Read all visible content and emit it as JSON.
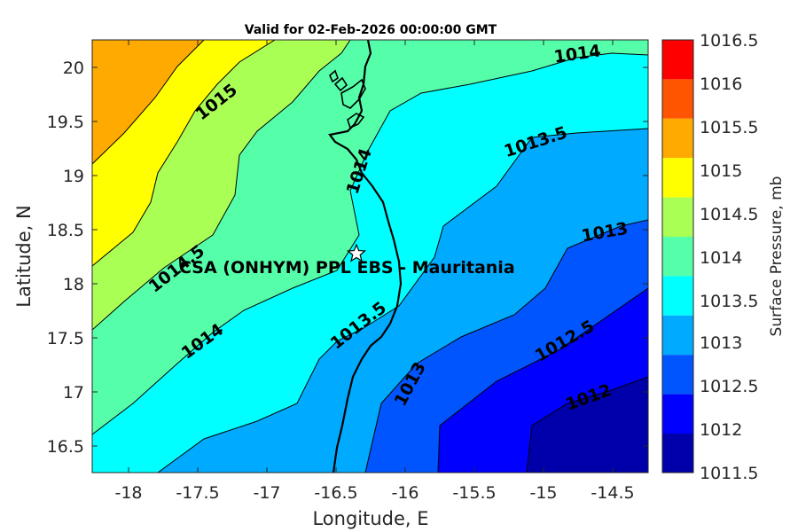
{
  "title": "Valid for 02-Feb-2026 00:00:00 GMT",
  "xlabel": "Longitude, E",
  "ylabel": "Latitude, N",
  "x_ticks": [
    "-18",
    "-17.5",
    "-17",
    "-16.5",
    "-16",
    "-15.5",
    "-15",
    "-14.5"
  ],
  "y_ticks": [
    "20",
    "19.5",
    "19",
    "18.5",
    "18",
    "17.5",
    "17",
    "16.5"
  ],
  "colorbar": {
    "label": "Surface Pressure, mb",
    "ticks": [
      "1016.5",
      "1016",
      "1015.5",
      "1015",
      "1014.5",
      "1014",
      "1013.5",
      "1013",
      "1012.5",
      "1012",
      "1011.5"
    ],
    "colors": [
      "#ff0000",
      "#ff5500",
      "#ffaa00",
      "#ffff00",
      "#aaff55",
      "#55ffaa",
      "#00ffff",
      "#00aaff",
      "#0055ff",
      "#0000ff",
      "#0000aa"
    ]
  },
  "contour_labels": [
    "1015",
    "1014",
    "1014",
    "1014",
    "1013.5",
    "1013.5",
    "1013",
    "1013",
    "1012.5",
    "1012",
    "1014.5"
  ],
  "site": {
    "label": "CSA (ONHYM) PPL EBS  - Mauritania",
    "marker": "star-marker",
    "lon": -16.35,
    "lat": 18.27
  },
  "chart_data": {
    "type": "contour-map",
    "variable": "Surface Pressure, mb",
    "xlim": [
      -18.25,
      -14.2
    ],
    "ylim": [
      16.25,
      20.25
    ],
    "levels": [
      1011.5,
      1012,
      1012.5,
      1013,
      1013.5,
      1014,
      1014.5,
      1015,
      1015.5,
      1016,
      1016.5
    ],
    "contour_values_labeled": [
      1012,
      1012.5,
      1013,
      1013.5,
      1014,
      1014.5,
      1015
    ]
  }
}
